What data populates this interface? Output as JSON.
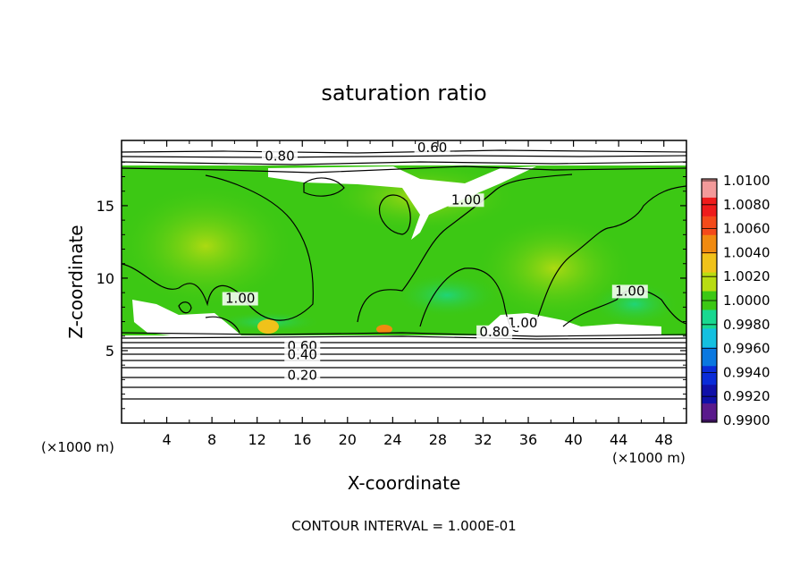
{
  "chart_data": {
    "type": "heatmap",
    "title": "saturation ratio",
    "xlabel": "X-coordinate",
    "ylabel": "Z-coordinate",
    "x_unit_left": "(×1000 m)",
    "x_unit_right": "(×1000 m)",
    "xlim": [
      0,
      50
    ],
    "ylim": [
      0,
      19.5
    ],
    "xticks": [
      4,
      8,
      12,
      16,
      20,
      24,
      28,
      32,
      36,
      40,
      44,
      48
    ],
    "yticks": [
      5,
      10,
      15
    ],
    "colorbar": {
      "labels": [
        "1.0100",
        "1.0080",
        "1.0060",
        "1.0040",
        "1.0020",
        "1.0000",
        "0.9980",
        "0.9960",
        "0.9940",
        "0.9920",
        "0.9900"
      ],
      "colors": [
        "#f39a9a",
        "#ee1c1c",
        "#f44a1a",
        "#f08a10",
        "#f0c21a",
        "#b8dc12",
        "#3cc814",
        "#19d890",
        "#14c0e0",
        "#0a78e0",
        "#0a2cd8",
        "#1010a8",
        "#5a1a8c"
      ]
    },
    "contour_labels": [
      {
        "text": "0.60",
        "x": 27.5,
        "y": 18.7
      },
      {
        "text": "0.80",
        "x": 14.0,
        "y": 18.1
      },
      {
        "text": "1.00",
        "x": 30.5,
        "y": 15.1
      },
      {
        "text": "1.00",
        "x": 10.5,
        "y": 8.3
      },
      {
        "text": "1.00",
        "x": 45.0,
        "y": 8.8
      },
      {
        "text": "1.00",
        "x": 35.5,
        "y": 6.6
      },
      {
        "text": "0.80",
        "x": 33.0,
        "y": 6.0
      },
      {
        "text": "0.60",
        "x": 16.0,
        "y": 5.0
      },
      {
        "text": "0.40",
        "x": 16.0,
        "y": 4.4
      },
      {
        "text": "0.20",
        "x": 16.0,
        "y": 3.0
      }
    ],
    "annotation": "CONTOUR INTERVAL = 1.000E-01"
  }
}
